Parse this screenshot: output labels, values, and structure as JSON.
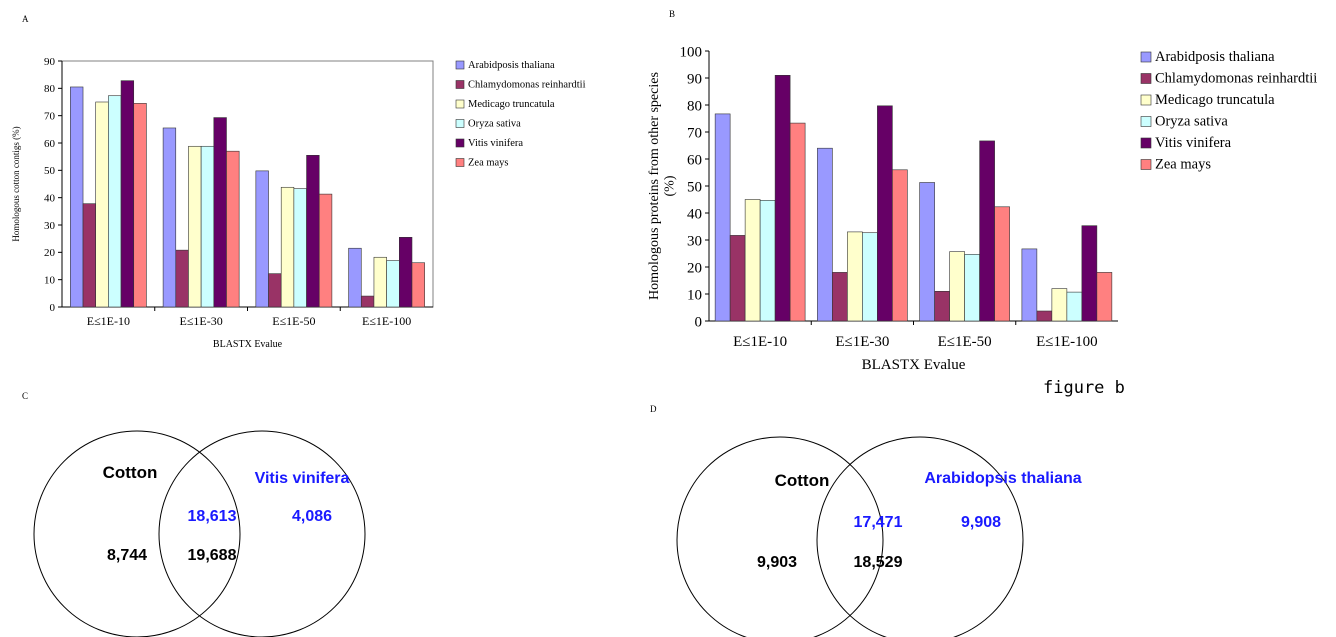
{
  "panels": {
    "a": "A",
    "b": "B",
    "c": "C",
    "d": "D"
  },
  "caption_b": "figure b",
  "colors": {
    "series": [
      "#9999ff",
      "#993366",
      "#ffffcc",
      "#ccffff",
      "#660066",
      "#ff8080"
    ],
    "venn_blue": "#1a1aff",
    "venn_black": "#000000"
  },
  "chart_data": [
    {
      "type": "bar",
      "categories": [
        "E≤1E-10",
        "E≤1E-30",
        "E≤1E-50",
        "E≤1E-100"
      ],
      "series": [
        {
          "name": "Arabidposis thaliana",
          "values": [
            80.5,
            65.5,
            49.8,
            21.5
          ]
        },
        {
          "name": "Chlamydomonas reinhardtii",
          "values": [
            37.8,
            20.8,
            12.2,
            4.0
          ]
        },
        {
          "name": "Medicago truncatula",
          "values": [
            75.0,
            58.8,
            43.8,
            18.2
          ]
        },
        {
          "name": "Oryza sativa",
          "values": [
            77.3,
            58.8,
            43.3,
            17.0
          ]
        },
        {
          "name": "Vitis vinifera",
          "values": [
            82.8,
            69.3,
            55.5,
            25.5
          ]
        },
        {
          "name": "Zea mays",
          "values": [
            74.5,
            57.0,
            41.3,
            16.2
          ]
        }
      ],
      "xlabel": "BLASTX Evalue",
      "ylabel": "Homologous cotton contigs (%)",
      "ylim": [
        0,
        90
      ],
      "yticks": [
        0,
        10,
        20,
        30,
        40,
        50,
        60,
        70,
        80,
        90
      ],
      "legend_position": "right"
    },
    {
      "type": "bar",
      "categories": [
        "E≤1E-10",
        "E≤1E-30",
        "E≤1E-50",
        "E≤1E-100"
      ],
      "series": [
        {
          "name": "Arabidposis thaliana",
          "values": [
            76.7,
            64.0,
            51.3,
            26.7
          ]
        },
        {
          "name": "Chlamydomonas reinhardtii",
          "values": [
            31.7,
            18.0,
            11.0,
            3.7
          ]
        },
        {
          "name": "Medicago truncatula",
          "values": [
            45.0,
            33.0,
            25.7,
            12.0
          ]
        },
        {
          "name": "Oryza sativa",
          "values": [
            44.7,
            32.7,
            24.7,
            10.7
          ]
        },
        {
          "name": "Vitis vinifera",
          "values": [
            91.0,
            79.7,
            66.7,
            35.3
          ]
        },
        {
          "name": "Zea mays",
          "values": [
            73.3,
            56.0,
            42.3,
            18.0
          ]
        }
      ],
      "xlabel": "BLASTX Evalue",
      "ylabel": "Homologous proteins from other species",
      "ylabel_unit": "(%)",
      "ylim": [
        0,
        100
      ],
      "yticks": [
        0,
        10,
        20,
        30,
        40,
        50,
        60,
        70,
        80,
        90,
        100
      ],
      "legend_position": "right"
    }
  ],
  "venn": [
    {
      "left_label": "Cotton",
      "right_label": "Vitis vinifera",
      "left_only": "8,744",
      "overlap_top": "18,613",
      "overlap_bottom": "19,688",
      "right_only": "4,086"
    },
    {
      "left_label": "Cotton",
      "right_label": "Arabidopsis thaliana",
      "left_only": "9,903",
      "overlap_top": "17,471",
      "overlap_bottom": "18,529",
      "right_only": "9,908"
    }
  ]
}
